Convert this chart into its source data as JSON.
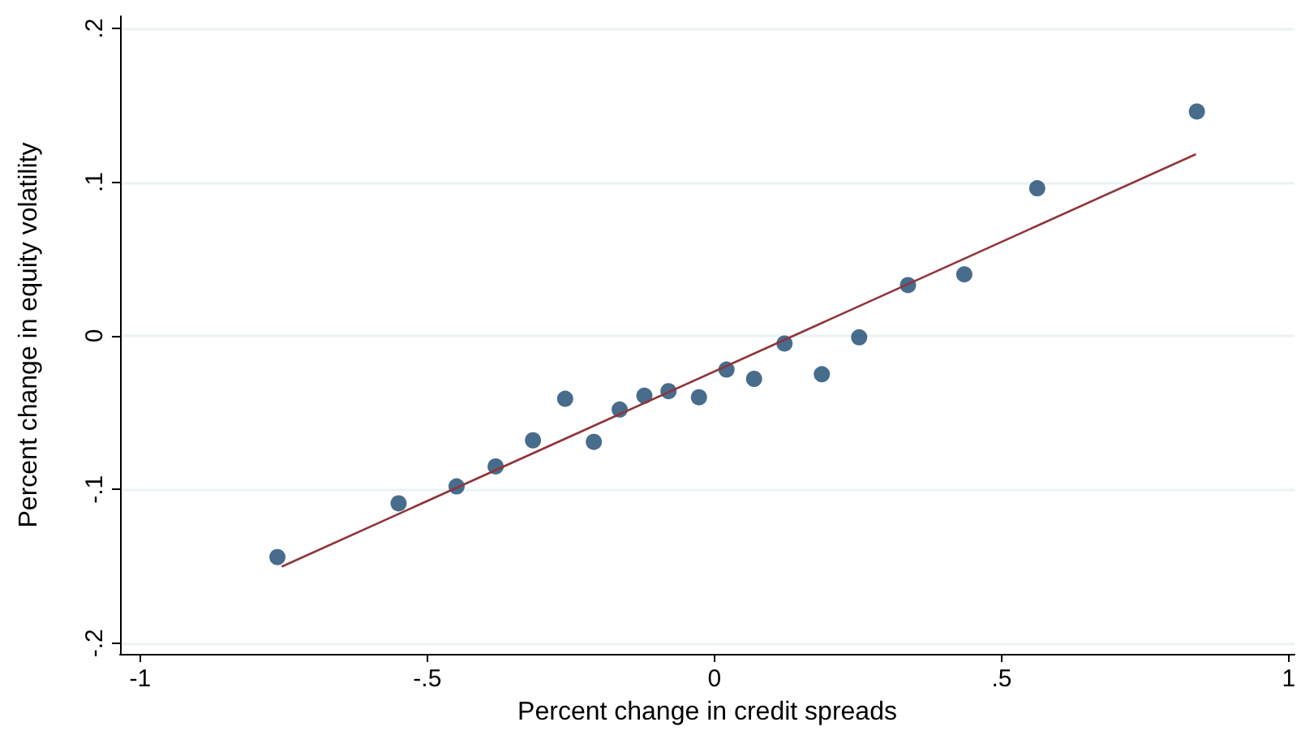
{
  "chart_data": {
    "type": "scatter",
    "xlabel": "Percent change in credit spreads",
    "ylabel": "Percent change in equity volatility",
    "xlim": [
      -1.035,
      1.01
    ],
    "ylim": [
      -0.207,
      0.208
    ],
    "xticks": [
      {
        "value": -1,
        "label": "-1"
      },
      {
        "value": -0.5,
        "label": "-.5"
      },
      0,
      {
        "value": 0.5,
        "label": ".5"
      },
      1
    ],
    "yticks": [
      {
        "value": -0.2,
        "label": "-.2"
      },
      {
        "value": -0.1,
        "label": "-.1"
      },
      0,
      {
        "value": 0.1,
        "label": ".1"
      },
      {
        "value": 0.2,
        "label": ".2"
      }
    ],
    "grid": "y",
    "marker": "circle",
    "series": [
      {
        "color": "#1a476f",
        "x": [
          -0.761,
          -0.55,
          -0.449,
          -0.381,
          -0.316,
          -0.26,
          -0.21,
          -0.165,
          -0.122,
          -0.08,
          -0.027,
          0.021,
          0.069,
          0.122,
          0.187,
          0.252,
          0.337,
          0.435,
          0.562,
          0.84
        ],
        "values": [
          -0.144,
          -0.109,
          -0.098,
          -0.085,
          -0.068,
          -0.041,
          -0.069,
          -0.048,
          -0.039,
          -0.036,
          -0.04,
          -0.022,
          -0.028,
          -0.005,
          -0.025,
          -0.001,
          0.033,
          0.04,
          0.096,
          0.146
        ]
      },
      {
        "type": "line",
        "color": "#90353b",
        "marker": "none",
        "line_style": "solid",
        "x": [
          -0.752,
          0.837
        ],
        "values": [
          -0.15,
          0.118
        ]
      }
    ]
  }
}
